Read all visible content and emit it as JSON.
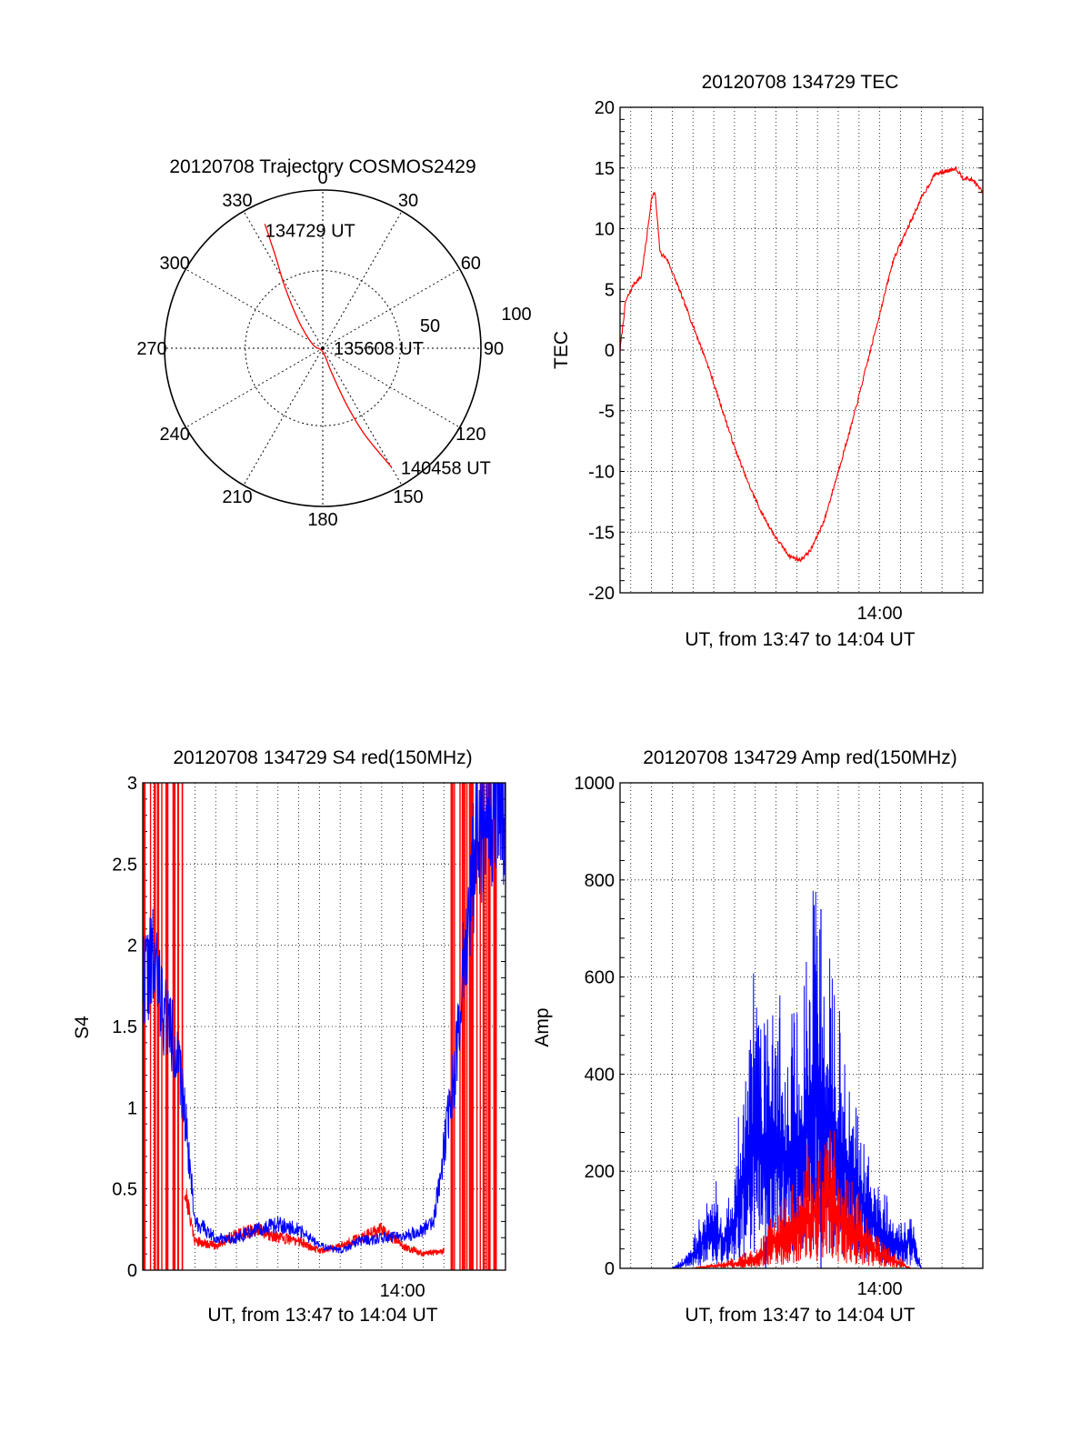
{
  "colors": {
    "red": "#ff0000",
    "blue": "#0000ff",
    "axis": "#000000",
    "grid": "#000000"
  },
  "chart_data": [
    {
      "type": "polar",
      "title": "20120708 Trajectory COSMOS2429",
      "azimuth_labels": [
        "0",
        "30",
        "60",
        "90",
        "120",
        "150",
        "180",
        "210",
        "240",
        "270",
        "300",
        "330"
      ],
      "radius_labels": [
        "50",
        "100"
      ],
      "trajectory": {
        "color": "red",
        "points": [
          {
            "az": 335,
            "r": 78
          },
          {
            "az": 333,
            "r": 60
          },
          {
            "az": 328,
            "r": 40
          },
          {
            "az": 318,
            "r": 20
          },
          {
            "az": 290,
            "r": 6
          },
          {
            "az": 180,
            "r": 2
          },
          {
            "az": 160,
            "r": 15
          },
          {
            "az": 157,
            "r": 35
          },
          {
            "az": 154,
            "r": 55
          },
          {
            "az": 150,
            "r": 78
          }
        ]
      },
      "annotations": [
        {
          "text": "134729 UT",
          "az": 335,
          "r": 78
        },
        {
          "text": "135608 UT",
          "az": 0,
          "r": 0
        },
        {
          "text": "140458 UT",
          "az": 150,
          "r": 78
        }
      ]
    },
    {
      "type": "line",
      "title": "20120708 134729 TEC",
      "xlabel": "UT, from 13:47 to 14:04 UT",
      "ylabel": "TEC",
      "xlim": [
        "13:47:29",
        "14:04:58"
      ],
      "ylim": [
        -20,
        20
      ],
      "yticks": [
        "20",
        "15",
        "10",
        "5",
        "0",
        "-5",
        "-10",
        "-15",
        "-20"
      ],
      "xtick_labels": [
        {
          "value": "14:00:00",
          "label": "14:00"
        }
      ],
      "grid": true,
      "series": [
        {
          "color": "red",
          "x": [
            "13:47:29",
            "13:47:45",
            "13:48:10",
            "13:48:30",
            "13:48:45",
            "13:49:00",
            "13:49:10",
            "13:49:25",
            "13:49:45",
            "13:50:20",
            "13:51:00",
            "13:51:40",
            "13:52:20",
            "13:53:00",
            "13:53:40",
            "13:54:20",
            "13:55:00",
            "13:55:40",
            "13:56:10",
            "13:56:40",
            "13:57:20",
            "13:58:00",
            "13:58:40",
            "13:59:20",
            "14:00:00",
            "14:00:40",
            "14:01:20",
            "14:02:00",
            "14:02:40",
            "14:03:20",
            "14:03:40",
            "14:04:00",
            "14:04:30",
            "14:04:58"
          ],
          "y": [
            0,
            4,
            5.5,
            6,
            9,
            12.5,
            13,
            8,
            7.5,
            5,
            2,
            -1,
            -4.5,
            -8,
            -11,
            -13.5,
            -15.5,
            -17,
            -17.3,
            -16.5,
            -14,
            -10,
            -6,
            -1.5,
            3,
            7.5,
            10,
            12.5,
            14.5,
            14.8,
            15,
            14.2,
            14,
            13
          ]
        }
      ]
    },
    {
      "type": "line",
      "title": "20120708 134729 S4 red(150MHz)",
      "xlabel": "UT, from 13:47 to 14:04 UT",
      "ylabel": "S4",
      "xlim": [
        "13:47:29",
        "14:04:58"
      ],
      "ylim": [
        0,
        3
      ],
      "yticks": [
        "3",
        "2.5",
        "2",
        "1.5",
        "1",
        "0.5",
        "0"
      ],
      "xtick_labels": [
        {
          "value": "14:00:00",
          "label": "14:00"
        }
      ],
      "grid": true,
      "series": [
        {
          "color": "red",
          "x": [
            "13:49:30",
            "13:50:00",
            "13:51:00",
            "13:52:00",
            "13:53:00",
            "13:54:00",
            "13:55:00",
            "13:56:00",
            "13:57:00",
            "13:58:00",
            "13:59:00",
            "14:00:00",
            "14:01:00",
            "14:02:00"
          ],
          "y": [
            0.5,
            0.18,
            0.15,
            0.22,
            0.25,
            0.2,
            0.18,
            0.12,
            0.15,
            0.2,
            0.25,
            0.15,
            0.1,
            0.12
          ]
        },
        {
          "color": "blue",
          "x": [
            "13:47:29",
            "13:48:00",
            "13:48:30",
            "13:49:00",
            "13:49:30",
            "13:50:00",
            "13:51:00",
            "13:52:00",
            "13:53:00",
            "13:54:00",
            "13:55:00",
            "13:56:00",
            "13:57:00",
            "13:58:00",
            "13:59:00",
            "14:00:00",
            "14:01:00",
            "14:01:30",
            "14:02:30",
            "14:03:00",
            "14:03:30",
            "14:04:00",
            "14:04:58"
          ],
          "y": [
            1.8,
            1.9,
            1.6,
            1.4,
            1.0,
            0.3,
            0.2,
            0.2,
            0.25,
            0.28,
            0.25,
            0.15,
            0.12,
            0.18,
            0.2,
            0.2,
            0.25,
            0.3,
            1.2,
            2.0,
            2.6,
            2.8,
            2.9
          ]
        }
      ],
      "red_dropout_spikes_x": [
        "13:47:29",
        "13:47:50",
        "13:48:10",
        "13:48:30",
        "13:48:50",
        "13:49:10",
        "14:02:20",
        "14:02:40",
        "14:03:00",
        "14:03:20",
        "14:03:40",
        "14:04:00",
        "14:04:20"
      ]
    },
    {
      "type": "line",
      "title": "20120708 134729 Amp red(150MHz)",
      "xlabel": "UT, from 13:47 to 14:04 UT",
      "ylabel": "Amp",
      "xlim": [
        "13:47:29",
        "14:04:58"
      ],
      "ylim": [
        0,
        1000
      ],
      "yticks": [
        "1000",
        "800",
        "600",
        "400",
        "200",
        "0"
      ],
      "xtick_labels": [
        {
          "value": "14:00:00",
          "label": "14:00"
        }
      ],
      "grid": true,
      "series": [
        {
          "color": "blue",
          "x": [
            "13:47:29",
            "13:50:00",
            "13:50:30",
            "13:51:00",
            "13:52:00",
            "13:52:30",
            "13:53:00",
            "13:53:30",
            "13:54:00",
            "13:54:30",
            "13:55:00",
            "13:55:30",
            "13:56:00",
            "13:56:30",
            "13:57:00",
            "13:57:30",
            "13:58:00",
            "13:58:30",
            "13:59:00",
            "13:59:30",
            "14:00:00",
            "14:01:00",
            "14:01:30",
            "14:02:00",
            "14:04:58"
          ],
          "y": [
            0,
            0,
            10,
            30,
            80,
            60,
            100,
            200,
            300,
            250,
            280,
            220,
            260,
            300,
            400,
            300,
            250,
            200,
            150,
            100,
            80,
            40,
            60,
            0,
            0
          ]
        },
        {
          "color": "red",
          "x": [
            "13:47:29",
            "13:51:00",
            "13:52:00",
            "13:53:00",
            "13:54:00",
            "13:55:00",
            "13:56:00",
            "13:57:00",
            "13:57:30",
            "13:58:00",
            "13:59:00",
            "14:00:00",
            "14:01:00",
            "14:01:30",
            "14:04:58"
          ],
          "y": [
            0,
            0,
            5,
            10,
            20,
            60,
            90,
            120,
            170,
            110,
            70,
            30,
            10,
            0,
            0
          ]
        }
      ],
      "blue_peaks": [
        {
          "x": "13:54:30",
          "y": 480
        },
        {
          "x": "13:57:10",
          "y": 740
        }
      ]
    }
  ]
}
